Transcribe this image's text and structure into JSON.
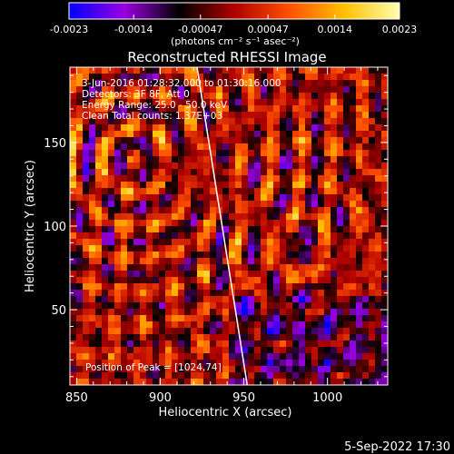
{
  "chart_data": {
    "type": "heatmap",
    "title": "Reconstructed RHESSI Image",
    "xlabel": "Heliocentric X (arcsec)",
    "ylabel": "Heliocentric Y (arcsec)",
    "xlim": [
      846,
      1036
    ],
    "ylim": [
      5,
      195
    ],
    "x_ticks": [
      850,
      900,
      950,
      1000
    ],
    "y_ticks": [
      50,
      100,
      150
    ],
    "colorbar": {
      "label": "(photons cm⁻² s⁻¹ asec⁻²)",
      "range": [
        -0.0023,
        0.0023
      ],
      "tick_values": [
        -0.0023,
        -0.0014,
        -0.00047,
        0.00047,
        0.0014,
        0.0023
      ],
      "tick_labels": [
        "-0.0023",
        "-0.0014",
        "-0.00047",
        "0.00047",
        "0.0014",
        "0.0023"
      ],
      "stops": [
        "#0000ff",
        "#9a00e0",
        "#000000",
        "#b00000",
        "#ff5000",
        "#ffc000",
        "#ffffb0"
      ]
    },
    "annotations": [
      "3-Jun-2016 01:28:32.000 to 01:30:16.000",
      "Detectors: 3F 8F, Att 0",
      "Energy Range: 25.0 - 50.0 keV",
      "Clean     Total counts: 1.37E+03"
    ],
    "peak_label": "Position of Peak = [1024,74]",
    "limb_line": {
      "x": [
        922,
        952
      ],
      "y": [
        195,
        5
      ]
    }
  },
  "footer": {
    "date": "5-Sep-2022 17:30"
  }
}
